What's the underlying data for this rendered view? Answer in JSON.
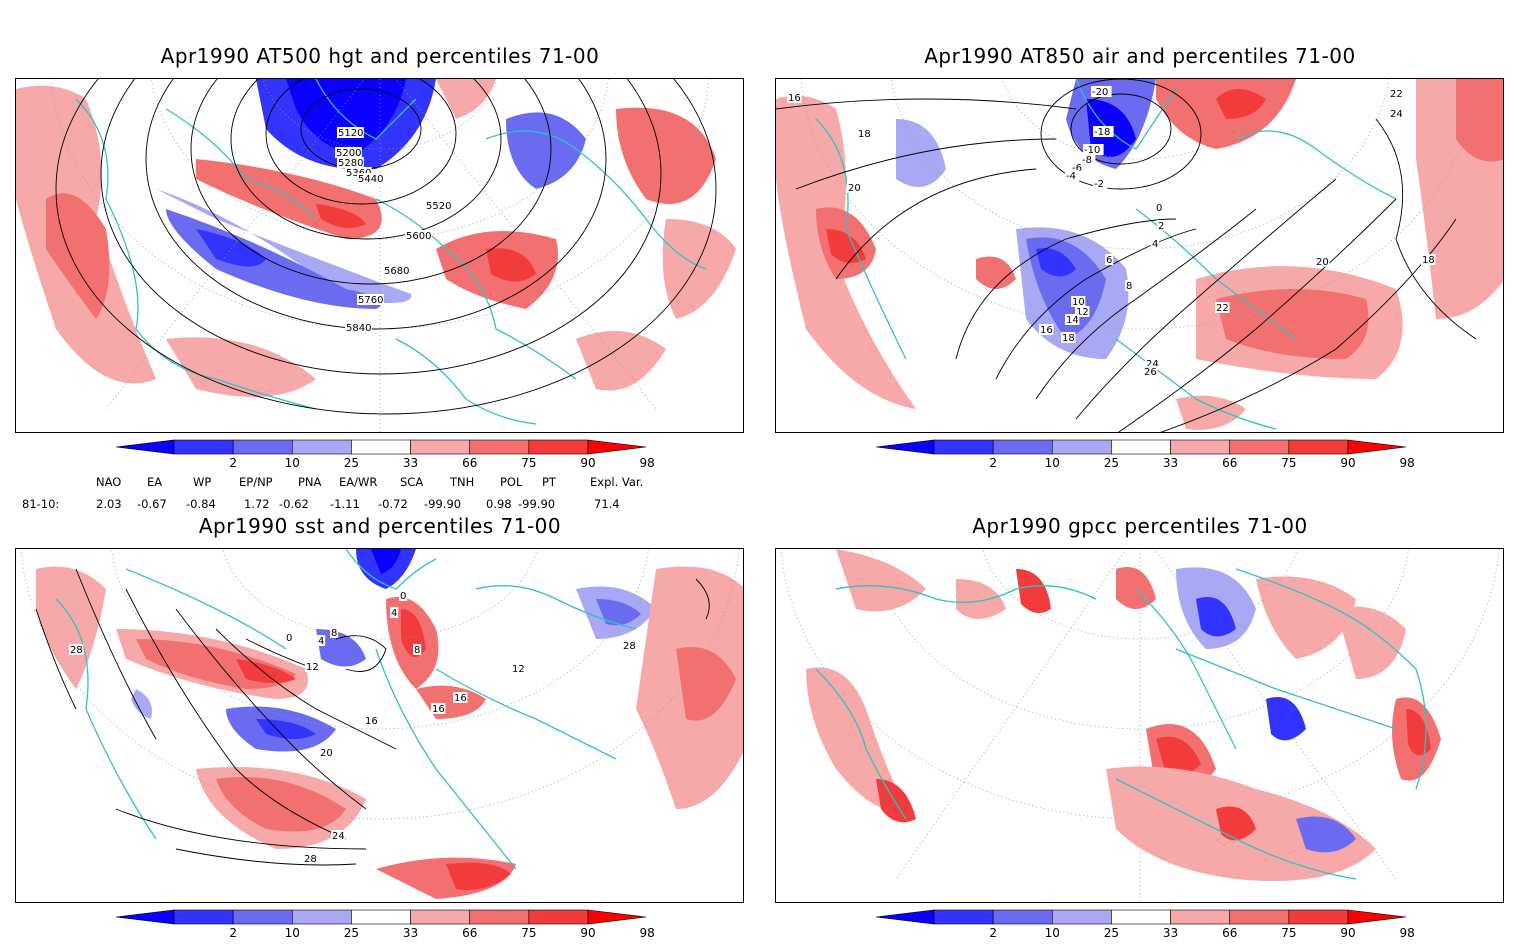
{
  "panels": [
    {
      "id": "p1",
      "title": "Apr1990 AT500 hgt and percentiles 71-00",
      "contour_labels": [
        "5120",
        "5200",
        "5280",
        "5360",
        "5440",
        "5520",
        "5600",
        "5680",
        "5760",
        "5840"
      ]
    },
    {
      "id": "p2",
      "title": "Apr1990 AT850 air and percentiles 71-00",
      "contour_labels": [
        "16",
        "18",
        "20",
        "-20",
        "-18",
        "-10",
        "-8",
        "-6",
        "-4",
        "-2",
        "0",
        "2",
        "4",
        "6",
        "8",
        "10",
        "12",
        "14",
        "16",
        "18",
        "22",
        "24",
        "26",
        "20",
        "22",
        "24",
        "18"
      ]
    },
    {
      "id": "p3",
      "title": "Apr1990 sst and percentiles 71-00",
      "contour_labels": [
        "28",
        "0",
        "4",
        "8",
        "12",
        "16",
        "20",
        "24",
        "28",
        "0",
        "4",
        "8",
        "16",
        "16",
        "12",
        "28"
      ]
    },
    {
      "id": "p4",
      "title": "Apr1990 gpcc percentiles 71-00",
      "contour_labels": []
    }
  ],
  "colorbar": {
    "ticks": [
      "2",
      "10",
      "25",
      "33",
      "66",
      "75",
      "90",
      "98"
    ],
    "colors": {
      "dark_blue": "#0b00ff",
      "blue": "#3333ff",
      "mid_blue": "#6b6bf2",
      "light_blue": "#a8a8f5",
      "light_red": "#f7a8a8",
      "pink_red": "#f27070",
      "red": "#f23b3b",
      "dark_red": "#ff0000"
    }
  },
  "indices": {
    "headers": [
      "NAO",
      "EA",
      "WP",
      "EP/NP",
      "PNA",
      "EA/WR",
      "SCA",
      "TNH",
      "POL",
      "PT",
      "Expl. Var."
    ],
    "row_label": "81-10:",
    "values": [
      "2.03",
      "-0.67",
      "-0.84",
      "1.72",
      "-0.62",
      "-1.11",
      "-0.72",
      "-99.90",
      "0.98",
      "-99.90",
      "71.4"
    ]
  },
  "map_colors": {
    "coast": "#2ec4c4",
    "grid": "#999999"
  }
}
